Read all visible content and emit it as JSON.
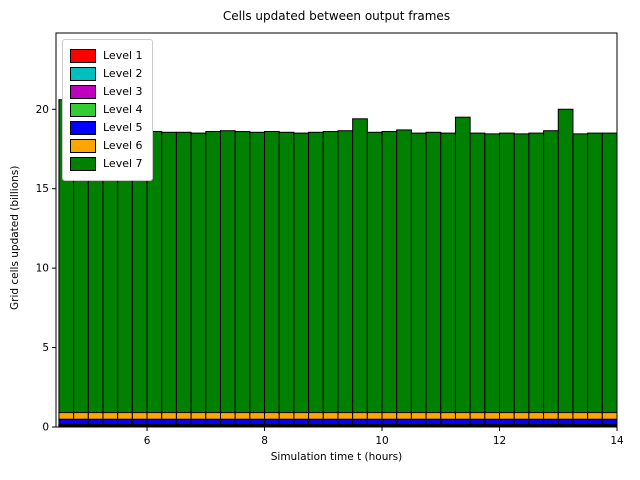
{
  "figure": {
    "background": "#ffffff"
  },
  "chart_data": {
    "type": "bar",
    "stacked": true,
    "title": "Cells updated between output frames",
    "xlabel": "Simulation time t (hours)",
    "ylabel": "Grid cells updated (billions)",
    "xlim": [
      4.45,
      14.0
    ],
    "ylim": [
      0,
      24.8
    ],
    "xticks": [
      6,
      8,
      10,
      12,
      14
    ],
    "yticks": [
      0,
      5,
      10,
      15,
      20
    ],
    "grid": false,
    "legend_position": "upper left",
    "bar_width": 0.25,
    "bar_edge_color": "#000000",
    "x": [
      4.625,
      4.875,
      5.125,
      5.375,
      5.625,
      5.875,
      6.125,
      6.375,
      6.625,
      6.875,
      7.125,
      7.375,
      7.625,
      7.875,
      8.125,
      8.375,
      8.625,
      8.875,
      9.125,
      9.375,
      9.625,
      9.875,
      10.125,
      10.375,
      10.625,
      10.875,
      11.125,
      11.375,
      11.625,
      11.875,
      12.125,
      12.375,
      12.625,
      12.875,
      13.125,
      13.375,
      13.625,
      13.875
    ],
    "series": [
      {
        "name": "Level 1",
        "color": "#ff0000",
        "values": [
          0.06,
          0.06,
          0.06,
          0.06,
          0.06,
          0.06,
          0.06,
          0.06,
          0.06,
          0.06,
          0.06,
          0.06,
          0.06,
          0.06,
          0.06,
          0.06,
          0.06,
          0.06,
          0.06,
          0.06,
          0.06,
          0.06,
          0.06,
          0.06,
          0.06,
          0.06,
          0.06,
          0.06,
          0.06,
          0.06,
          0.06,
          0.06,
          0.06,
          0.06,
          0.06,
          0.06,
          0.06,
          0.06
        ]
      },
      {
        "name": "Level 2",
        "color": "#00bfbf",
        "values": [
          0.03,
          0.03,
          0.03,
          0.03,
          0.03,
          0.03,
          0.03,
          0.03,
          0.03,
          0.03,
          0.03,
          0.03,
          0.03,
          0.03,
          0.03,
          0.03,
          0.03,
          0.03,
          0.03,
          0.03,
          0.03,
          0.03,
          0.03,
          0.03,
          0.03,
          0.03,
          0.03,
          0.03,
          0.03,
          0.03,
          0.03,
          0.03,
          0.03,
          0.03,
          0.03,
          0.03,
          0.03,
          0.03
        ]
      },
      {
        "name": "Level 3",
        "color": "#bf00bf",
        "values": [
          0.03,
          0.03,
          0.03,
          0.03,
          0.03,
          0.03,
          0.03,
          0.03,
          0.03,
          0.03,
          0.03,
          0.03,
          0.03,
          0.03,
          0.03,
          0.03,
          0.03,
          0.03,
          0.03,
          0.03,
          0.03,
          0.03,
          0.03,
          0.03,
          0.03,
          0.03,
          0.03,
          0.03,
          0.03,
          0.03,
          0.03,
          0.03,
          0.03,
          0.03,
          0.03,
          0.03,
          0.03,
          0.03
        ]
      },
      {
        "name": "Level 4",
        "color": "#32cd32",
        "values": [
          0.04,
          0.04,
          0.04,
          0.04,
          0.04,
          0.04,
          0.04,
          0.04,
          0.04,
          0.04,
          0.04,
          0.04,
          0.04,
          0.04,
          0.04,
          0.04,
          0.04,
          0.04,
          0.04,
          0.04,
          0.04,
          0.04,
          0.04,
          0.04,
          0.04,
          0.04,
          0.04,
          0.04,
          0.04,
          0.04,
          0.04,
          0.04,
          0.04,
          0.04,
          0.04,
          0.04,
          0.04,
          0.04
        ]
      },
      {
        "name": "Level 5",
        "color": "#0000ff",
        "values": [
          0.33,
          0.33,
          0.33,
          0.33,
          0.33,
          0.33,
          0.33,
          0.33,
          0.33,
          0.33,
          0.33,
          0.33,
          0.33,
          0.33,
          0.33,
          0.33,
          0.33,
          0.33,
          0.33,
          0.33,
          0.33,
          0.33,
          0.33,
          0.33,
          0.33,
          0.33,
          0.33,
          0.33,
          0.33,
          0.33,
          0.33,
          0.33,
          0.33,
          0.33,
          0.33,
          0.33,
          0.33,
          0.33
        ]
      },
      {
        "name": "Level 6",
        "color": "#ffa500",
        "values": [
          0.42,
          0.42,
          0.42,
          0.42,
          0.42,
          0.42,
          0.42,
          0.42,
          0.42,
          0.42,
          0.42,
          0.42,
          0.42,
          0.42,
          0.42,
          0.42,
          0.42,
          0.42,
          0.42,
          0.42,
          0.42,
          0.42,
          0.42,
          0.42,
          0.42,
          0.42,
          0.42,
          0.42,
          0.42,
          0.42,
          0.42,
          0.42,
          0.42,
          0.42,
          0.42,
          0.42,
          0.42,
          0.42
        ]
      },
      {
        "name": "Level 7",
        "color": "#008000",
        "values": [
          19.69,
          17.69,
          17.59,
          18.99,
          17.69,
          17.74,
          17.69,
          17.64,
          17.64,
          17.59,
          17.69,
          17.74,
          17.69,
          17.64,
          17.69,
          17.64,
          17.59,
          17.64,
          17.69,
          17.74,
          18.49,
          17.64,
          17.69,
          17.79,
          17.59,
          17.64,
          17.59,
          18.59,
          17.59,
          17.54,
          17.59,
          17.54,
          17.59,
          17.74,
          19.09,
          17.54,
          17.59,
          17.59
        ]
      }
    ]
  }
}
